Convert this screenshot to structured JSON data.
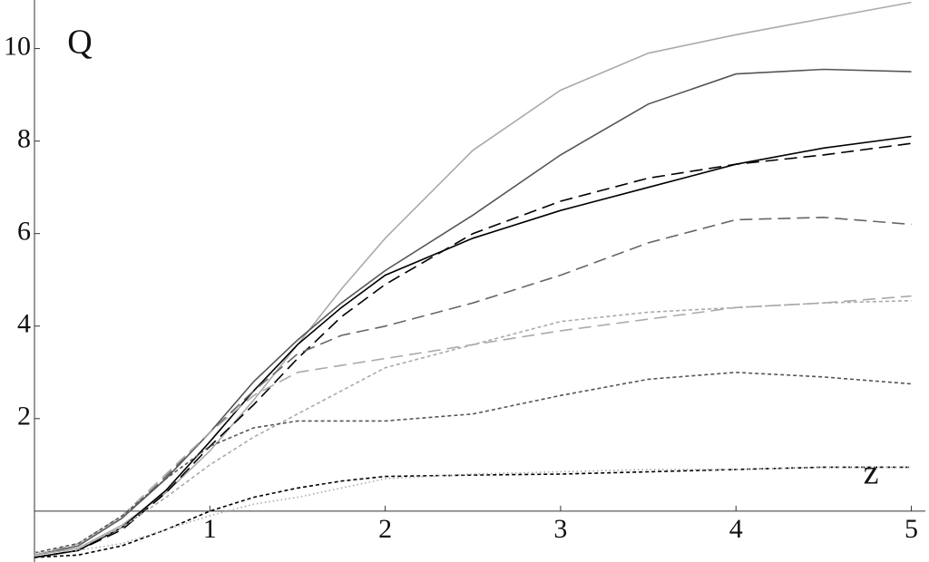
{
  "chart_data": {
    "type": "line",
    "xlabel": "z",
    "ylabel": "Q",
    "x": [
      0,
      0.25,
      0.5,
      0.75,
      1,
      1.25,
      1.5,
      1.75,
      2,
      2.5,
      3,
      3.5,
      4,
      4.5,
      5
    ],
    "xlim": [
      0,
      5.08
    ],
    "ylim": [
      -1.1,
      11.05
    ],
    "xticks": [
      1,
      2,
      3,
      4,
      5
    ],
    "yticks": [
      2,
      4,
      6,
      8,
      10
    ],
    "series": [
      {
        "color": "#aaaaaa",
        "dash": "solid",
        "values": [
          -0.95,
          -0.8,
          -0.3,
          0.4,
          1.3,
          2.4,
          3.6,
          4.8,
          5.9,
          7.8,
          9.1,
          9.9,
          10.3,
          10.65,
          11.0
        ]
      },
      {
        "color": "#555555",
        "dash": "solid",
        "values": [
          -0.95,
          -0.75,
          -0.15,
          0.7,
          1.7,
          2.8,
          3.7,
          4.5,
          5.2,
          6.4,
          7.7,
          8.8,
          9.45,
          9.55,
          9.5
        ]
      },
      {
        "color": "#000000",
        "dash": "solid",
        "values": [
          -1.0,
          -0.85,
          -0.35,
          0.45,
          1.5,
          2.6,
          3.6,
          4.4,
          5.1,
          5.9,
          6.5,
          7.0,
          7.5,
          7.85,
          8.1
        ]
      },
      {
        "color": "#000000",
        "dash": "long",
        "values": [
          -1.0,
          -0.85,
          -0.4,
          0.4,
          1.4,
          2.3,
          3.3,
          4.2,
          4.9,
          6.0,
          6.7,
          7.2,
          7.5,
          7.7,
          7.95
        ]
      },
      {
        "color": "#666666",
        "dash": "long",
        "values": [
          -0.95,
          -0.75,
          -0.15,
          0.75,
          1.7,
          2.6,
          3.4,
          3.8,
          4.0,
          4.5,
          5.1,
          5.8,
          6.3,
          6.35,
          6.2
        ]
      },
      {
        "color": "#aaaaaa",
        "dash": "long",
        "values": [
          -0.95,
          -0.7,
          -0.1,
          0.8,
          1.7,
          2.5,
          3.0,
          3.15,
          3.3,
          3.6,
          3.9,
          4.15,
          4.4,
          4.5,
          4.65
        ]
      },
      {
        "color": "#aaaaaa",
        "dash": "short",
        "values": [
          -0.95,
          -0.8,
          -0.35,
          0.3,
          1.0,
          1.6,
          2.1,
          2.6,
          3.1,
          3.6,
          4.1,
          4.3,
          4.4,
          4.5,
          4.55
        ]
      },
      {
        "color": "#555555",
        "dash": "short",
        "values": [
          -0.9,
          -0.7,
          -0.1,
          0.7,
          1.4,
          1.8,
          1.95,
          1.95,
          1.95,
          2.1,
          2.5,
          2.85,
          3.0,
          2.9,
          2.75
        ]
      },
      {
        "color": "#000000",
        "dash": "short",
        "values": [
          -1.0,
          -0.95,
          -0.75,
          -0.4,
          0.0,
          0.3,
          0.5,
          0.65,
          0.75,
          0.78,
          0.8,
          0.85,
          0.9,
          0.95,
          0.95
        ]
      },
      {
        "color": "#aaaaaa",
        "dash": "dotted",
        "values": [
          -0.9,
          -0.85,
          -0.7,
          -0.4,
          -0.1,
          0.15,
          0.3,
          0.5,
          0.7,
          0.8,
          0.85,
          0.9,
          0.9,
          0.95,
          0.95
        ]
      }
    ]
  }
}
